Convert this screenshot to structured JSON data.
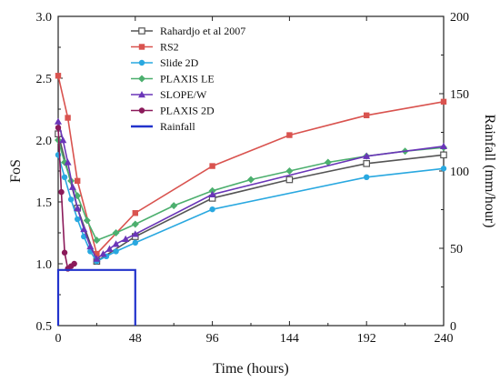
{
  "chart_data": {
    "type": "line",
    "xlabel": "Time (hours)",
    "ylabel": "FoS",
    "y2label": "Rainfall (mm/hour)",
    "xlim": [
      0,
      240
    ],
    "ylim": [
      0.5,
      3.0
    ],
    "y2lim": [
      0,
      200
    ],
    "xticks": [
      "0",
      "48",
      "96",
      "144",
      "192",
      "240"
    ],
    "yticks": [
      "0.5",
      "1.0",
      "1.5",
      "2.0",
      "2.5",
      "3.0"
    ],
    "y2ticks": [
      "0",
      "50",
      "100",
      "150",
      "200"
    ],
    "grid": false,
    "legend_position": "top-center",
    "series": [
      {
        "name": "Rahardjo et al 2007",
        "color": "#555555",
        "marker": "open-square",
        "x": [
          0,
          12,
          24,
          48,
          96,
          144,
          192,
          240
        ],
        "y": [
          2.05,
          1.45,
          1.02,
          1.22,
          1.53,
          1.68,
          1.81,
          1.88
        ]
      },
      {
        "name": "RS2",
        "color": "#d9534f",
        "marker": "square",
        "x": [
          0,
          6,
          12,
          24,
          48,
          96,
          144,
          192,
          240
        ],
        "y": [
          2.52,
          2.18,
          1.67,
          1.08,
          1.41,
          1.79,
          2.04,
          2.2,
          2.31
        ]
      },
      {
        "name": "Slide 2D",
        "color": "#29a8e0",
        "marker": "circle",
        "x": [
          0,
          4,
          8,
          12,
          16,
          20,
          24,
          30,
          36,
          48,
          96,
          192,
          240
        ],
        "y": [
          1.88,
          1.7,
          1.52,
          1.36,
          1.22,
          1.1,
          1.02,
          1.06,
          1.1,
          1.17,
          1.44,
          1.7,
          1.77
        ]
      },
      {
        "name": "PLAXIS LE",
        "color": "#4caf6e",
        "marker": "diamond",
        "x": [
          0,
          4,
          8,
          12,
          18,
          24,
          36,
          48,
          72,
          96,
          120,
          144,
          168,
          192,
          216,
          240
        ],
        "y": [
          2.0,
          1.82,
          1.67,
          1.55,
          1.35,
          1.19,
          1.25,
          1.32,
          1.47,
          1.59,
          1.68,
          1.75,
          1.82,
          1.87,
          1.91,
          1.94
        ]
      },
      {
        "name": "SLOPE/W",
        "color": "#6a35b8",
        "marker": "triangle",
        "x": [
          0,
          3,
          6,
          9,
          12,
          16,
          20,
          24,
          28,
          32,
          36,
          42,
          48,
          96,
          192,
          240
        ],
        "y": [
          2.15,
          2.0,
          1.82,
          1.62,
          1.45,
          1.28,
          1.14,
          1.04,
          1.08,
          1.12,
          1.16,
          1.2,
          1.24,
          1.56,
          1.87,
          1.95
        ]
      },
      {
        "name": "PLAXIS 2D",
        "color": "#8b1a5a",
        "marker": "circle",
        "x": [
          0,
          2,
          4,
          6,
          8,
          10
        ],
        "y": [
          2.1,
          1.58,
          1.09,
          0.96,
          0.98,
          1.0
        ]
      },
      {
        "name": "Rainfall",
        "color": "#2233cc",
        "marker": "none",
        "axis": "right",
        "x": [
          0,
          0,
          48,
          48
        ],
        "y": [
          0,
          36,
          36,
          0
        ]
      }
    ]
  }
}
